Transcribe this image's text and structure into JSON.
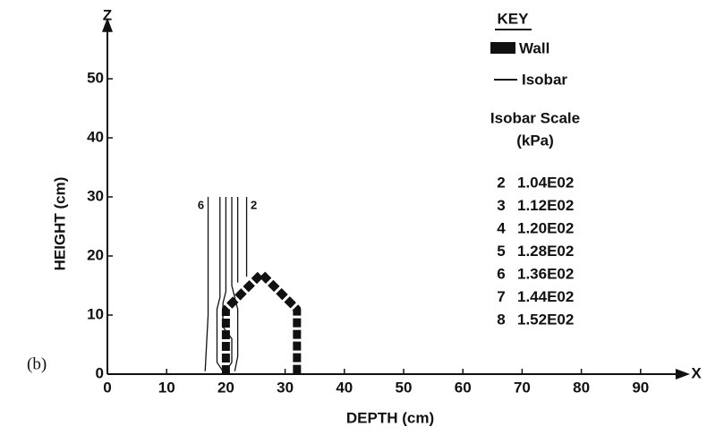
{
  "chart_data": {
    "type": "contour",
    "panel_label": "(b)",
    "x_axis_name": "X",
    "y_axis_name": "Z",
    "xlabel": "DEPTH (cm)",
    "ylabel": "HEIGHT (cm)",
    "xlim": [
      0,
      95
    ],
    "ylim": [
      0,
      57
    ],
    "xticks": [
      0,
      10,
      20,
      30,
      40,
      50,
      60,
      70,
      80,
      90
    ],
    "yticks": [
      0,
      10,
      20,
      30,
      40,
      50
    ],
    "wall": {
      "x": [
        20,
        20,
        26,
        32,
        32
      ],
      "y": [
        0,
        11,
        17,
        11,
        0
      ]
    },
    "contours": [
      {
        "label": "6",
        "x": [
          17,
          17,
          16.5
        ],
        "y": [
          30,
          10,
          0.5
        ]
      },
      {
        "x": [
          19,
          19,
          18.5,
          18.5,
          19.5
        ],
        "y": [
          30,
          13,
          11,
          2,
          0.5
        ]
      },
      {
        "x": [
          20,
          20,
          19.5,
          19.5,
          21,
          21,
          20
        ],
        "y": [
          30,
          14,
          12,
          8,
          6,
          2,
          0.5
        ]
      },
      {
        "x": [
          21,
          21,
          22,
          22,
          21.5
        ],
        "y": [
          30,
          15,
          11,
          3,
          0.5
        ]
      },
      {
        "x": [
          22,
          22
        ],
        "y": [
          30,
          15.5
        ]
      },
      {
        "label": "2",
        "x": [
          23.5,
          23.5
        ],
        "y": [
          30,
          16.5
        ]
      }
    ],
    "key": {
      "title": "KEY",
      "wall": "Wall",
      "isobar": "Isobar",
      "scale_title": "Isobar Scale",
      "scale_unit": "(kPa)",
      "scale": [
        [
          "2",
          "1.04E02"
        ],
        [
          "3",
          "1.12E02"
        ],
        [
          "4",
          "1.20E02"
        ],
        [
          "5",
          "1.28E02"
        ],
        [
          "6",
          "1.36E02"
        ],
        [
          "7",
          "1.44E02"
        ],
        [
          "8",
          "1.52E02"
        ]
      ]
    }
  }
}
